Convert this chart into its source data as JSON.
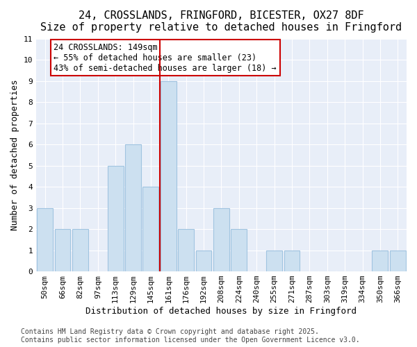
{
  "title": "24, CROSSLANDS, FRINGFORD, BICESTER, OX27 8DF",
  "subtitle": "Size of property relative to detached houses in Fringford",
  "xlabel": "Distribution of detached houses by size in Fringford",
  "ylabel": "Number of detached properties",
  "categories": [
    "50sqm",
    "66sqm",
    "82sqm",
    "97sqm",
    "113sqm",
    "129sqm",
    "145sqm",
    "161sqm",
    "176sqm",
    "192sqm",
    "208sqm",
    "224sqm",
    "240sqm",
    "255sqm",
    "271sqm",
    "287sqm",
    "303sqm",
    "319sqm",
    "334sqm",
    "350sqm",
    "366sqm"
  ],
  "values": [
    3,
    2,
    2,
    0,
    5,
    6,
    4,
    9,
    2,
    1,
    3,
    2,
    0,
    1,
    1,
    0,
    0,
    0,
    0,
    1,
    1
  ],
  "bar_color": "#cce0f0",
  "bar_edgecolor": "#a0c4e0",
  "vline_x": 6.5,
  "vline_color": "#cc0000",
  "annotation_text": "24 CROSSLANDS: 149sqm\n← 55% of detached houses are smaller (23)\n43% of semi-detached houses are larger (18) →",
  "annotation_box_color": "#ffffff",
  "annotation_box_edgecolor": "#cc0000",
  "ylim": [
    0,
    11
  ],
  "yticks": [
    0,
    1,
    2,
    3,
    4,
    5,
    6,
    7,
    8,
    9,
    10,
    11
  ],
  "plot_bg_color": "#e8eef8",
  "footer1": "Contains HM Land Registry data © Crown copyright and database right 2025.",
  "footer2": "Contains public sector information licensed under the Open Government Licence v3.0.",
  "title_fontsize": 11,
  "axis_label_fontsize": 9,
  "tick_fontsize": 8,
  "annotation_fontsize": 8.5,
  "footer_fontsize": 7
}
